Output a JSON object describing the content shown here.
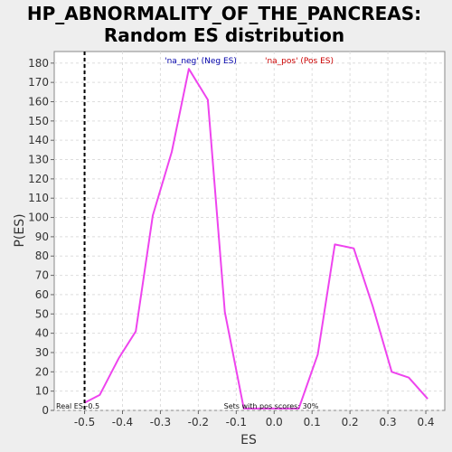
{
  "chart_data": {
    "type": "line",
    "title_line1": "HP_ABNORMALITY_OF_THE_PANCREAS:",
    "title_line2": "Random ES distribution",
    "xlabel": "ES",
    "ylabel": "P(ES)",
    "xlim": [
      -0.58,
      0.45
    ],
    "ylim": [
      0,
      186
    ],
    "x_ticks": [
      -0.5,
      -0.4,
      -0.3,
      -0.2,
      -0.1,
      0.0,
      0.1,
      0.2,
      0.3,
      0.4
    ],
    "x_tick_labels": [
      "-0.5",
      "-0.4",
      "-0.3",
      "-0.2",
      "-0.1",
      "0.0",
      "0.1",
      "0.2",
      "0.3",
      "0.4"
    ],
    "y_ticks": [
      0,
      10,
      20,
      30,
      40,
      50,
      60,
      70,
      80,
      90,
      100,
      110,
      120,
      130,
      140,
      150,
      160,
      170,
      180
    ],
    "y_tick_labels": [
      "0",
      "10",
      "20",
      "30",
      "40",
      "50",
      "60",
      "70",
      "80",
      "90",
      "100",
      "110",
      "120",
      "130",
      "140",
      "150",
      "160",
      "170",
      "180"
    ],
    "grid": true,
    "series": [
      {
        "color": "#ee44ee",
        "x": [
          -0.5,
          -0.46,
          -0.41,
          -0.365,
          -0.32,
          -0.27,
          -0.225,
          -0.175,
          -0.13,
          -0.08,
          0.065,
          0.115,
          0.16,
          0.21,
          0.26,
          0.31,
          0.355,
          0.405
        ],
        "y": [
          4,
          8,
          27,
          41,
          101,
          134,
          177,
          161,
          51,
          1,
          1,
          29,
          86,
          84,
          54,
          20,
          17,
          6
        ]
      }
    ],
    "real_es": -0.5,
    "real_es_label": "Real ES -0.5",
    "pos_scores_label": "Sets with pos scores: 30%",
    "legend": [
      {
        "label": "'na_neg' (Neg ES)",
        "color": "#0000aa"
      },
      {
        "label": "'na_pos' (Pos ES)",
        "color": "#cc0000"
      }
    ]
  }
}
